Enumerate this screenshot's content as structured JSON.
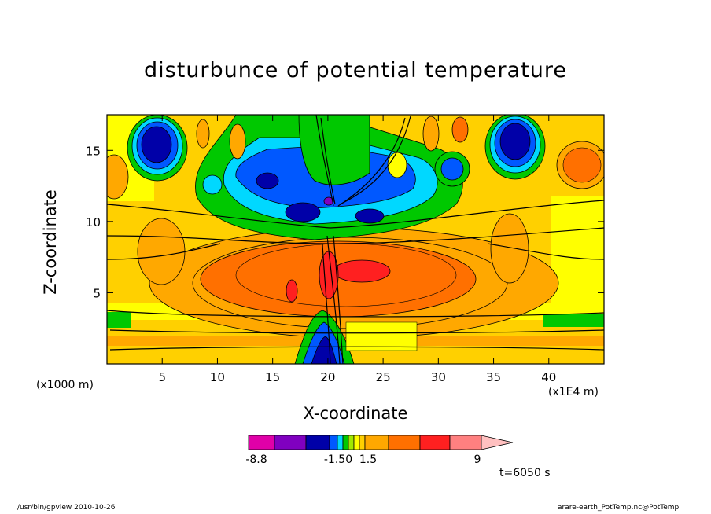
{
  "chart_data": {
    "type": "heatmap",
    "title": "disturbunce of potential temperature",
    "xlabel": "X-coordinate",
    "ylabel": "Z-coordinate",
    "x_unit": "(x1E4 m)",
    "y_unit": "(x1000 m)",
    "xlim": [
      0,
      45
    ],
    "ylim": [
      0,
      17.5
    ],
    "x_ticks": [
      5,
      10,
      15,
      20,
      25,
      30,
      35,
      40
    ],
    "y_ticks": [
      5,
      10,
      15
    ],
    "grid": false,
    "colorbar": {
      "orientation": "horizontal",
      "placement": "bottom",
      "labels": [
        "-8.8",
        "-1.50",
        "1.5",
        "9"
      ],
      "colors": [
        "#e000a8",
        "#8000c0",
        "#0000a8",
        "#0058ff",
        "#00d8ff",
        "#00c800",
        "#a0e800",
        "#ffff00",
        "#ffd000",
        "#ffa800",
        "#ff7000",
        "#ff2020",
        "#ff8080",
        "#ffc0c0"
      ]
    },
    "annotation": "t=6050 s"
  },
  "footer": {
    "left": "/usr/bin/gpview   2010-10-26",
    "right": "arare-earth_PotTemp.nc@PotTemp"
  }
}
